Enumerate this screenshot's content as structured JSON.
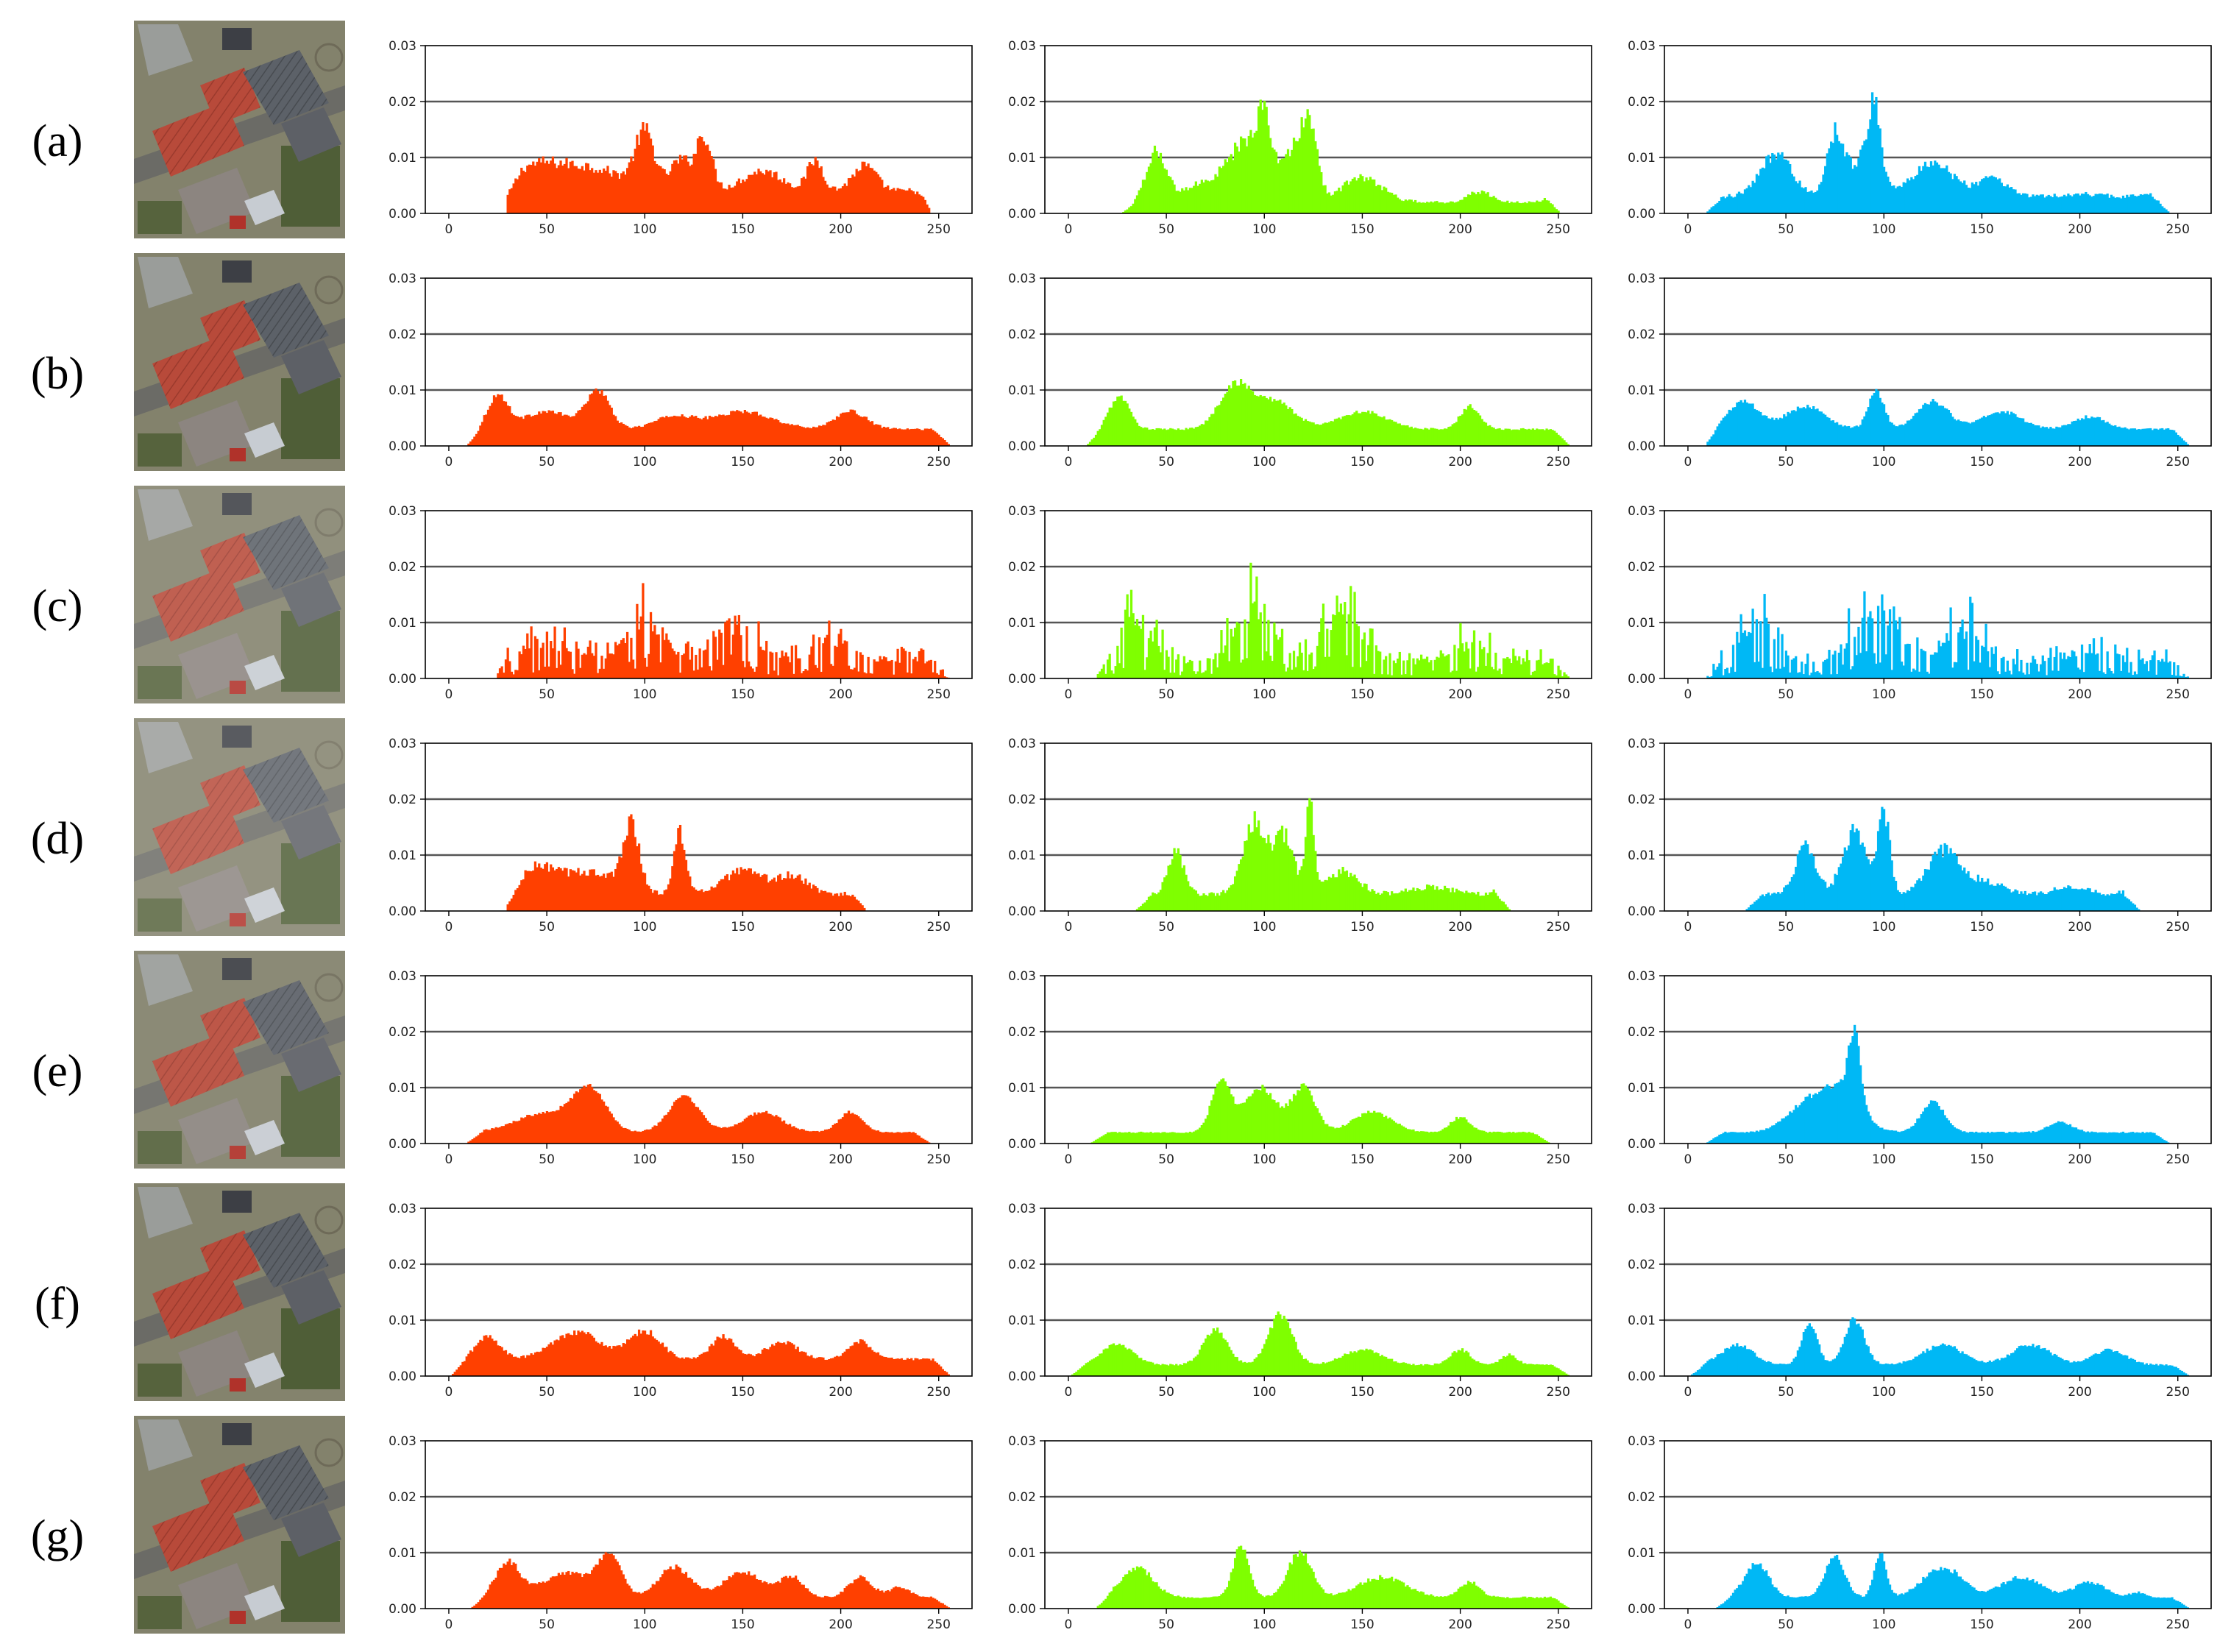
{
  "colors": {
    "red": "#ff4000",
    "green": "#7fff00",
    "blue": "#00b8f5"
  },
  "chart_data": {
    "type": "histogram-grid",
    "xlim": [
      0,
      255
    ],
    "ylim": [
      0,
      0.03
    ],
    "xticks": [
      0,
      50,
      100,
      150,
      200,
      250
    ],
    "yticks": [
      "0.00",
      "0.01",
      "0.02",
      "0.03"
    ],
    "grid": "horizontal",
    "channels": [
      "red",
      "green",
      "blue"
    ],
    "rows": [
      {
        "label": "(a)",
        "thumb": "aerial-houses",
        "red": {
          "range": [
            30,
            245
          ],
          "peaks": [
            [
              45,
              0.007,
              15
            ],
            [
              100,
              0.013,
              5
            ],
            [
              130,
              0.013,
              4
            ],
            [
              118,
              0.008,
              5
            ],
            [
              160,
              0.006,
              10
            ],
            [
              187,
              0.008,
              4
            ],
            [
              212,
              0.007,
              6
            ],
            [
              242,
              0.003,
              3
            ],
            [
              75,
              0.006,
              15
            ]
          ],
          "base": 0.004,
          "noise": 0.25
        },
        "green": {
          "range": [
            28,
            250
          ],
          "peaks": [
            [
              45,
              0.011,
              5
            ],
            [
              70,
              0.005,
              10
            ],
            [
              90,
              0.012,
              8
            ],
            [
              100,
              0.014,
              4
            ],
            [
              115,
              0.011,
              6
            ],
            [
              123,
              0.014,
              4
            ],
            [
              150,
              0.006,
              10
            ],
            [
              210,
              0.003,
              6
            ],
            [
              245,
              0.002,
              3
            ]
          ],
          "base": 0.002,
          "noise": 0.25
        },
        "blue": {
          "range": [
            10,
            245
          ],
          "peaks": [
            [
              45,
              0.01,
              8
            ],
            [
              75,
              0.013,
              4
            ],
            [
              90,
              0.009,
              8
            ],
            [
              95,
              0.014,
              3
            ],
            [
              125,
              0.008,
              10
            ],
            [
              155,
              0.005,
              8
            ],
            [
              200,
              0.002,
              10
            ],
            [
              235,
              0.002,
              3
            ]
          ],
          "base": 0.003,
          "noise": 0.25
        }
      },
      {
        "label": "(b)",
        "thumb": "aerial-houses",
        "red": {
          "range": [
            10,
            255
          ],
          "peaks": [
            [
              25,
              0.008,
              5
            ],
            [
              76,
              0.009,
              6
            ],
            [
              50,
              0.005,
              12
            ],
            [
              115,
              0.004,
              10
            ],
            [
              150,
              0.005,
              15
            ],
            [
              205,
              0.005,
              8
            ]
          ],
          "base": 0.003,
          "noise": 0.12
        },
        "green": {
          "range": [
            10,
            255
          ],
          "peaks": [
            [
              26,
              0.008,
              5
            ],
            [
              85,
              0.01,
              8
            ],
            [
              105,
              0.007,
              10
            ],
            [
              150,
              0.005,
              12
            ],
            [
              205,
              0.006,
              5
            ]
          ],
          "base": 0.003,
          "noise": 0.12
        },
        "blue": {
          "range": [
            10,
            255
          ],
          "peaks": [
            [
              28,
              0.007,
              8
            ],
            [
              60,
              0.006,
              10
            ],
            [
              96,
              0.009,
              4
            ],
            [
              125,
              0.007,
              8
            ],
            [
              160,
              0.005,
              10
            ],
            [
              205,
              0.004,
              8
            ]
          ],
          "base": 0.003,
          "noise": 0.12
        }
      },
      {
        "label": "(c)",
        "thumb": "aerial-houses",
        "red": {
          "range": [
            25,
            255
          ],
          "peaks": [
            [
              50,
              0.005,
              15
            ],
            [
              100,
              0.01,
              10
            ],
            [
              145,
              0.009,
              10
            ],
            [
              195,
              0.006,
              10
            ],
            [
              230,
              0.002,
              10
            ]
          ],
          "base": 0.003,
          "noise": 0.8,
          "spiky": true
        },
        "green": {
          "range": [
            15,
            255
          ],
          "peaks": [
            [
              35,
              0.01,
              8
            ],
            [
              95,
              0.012,
              10
            ],
            [
              140,
              0.011,
              10
            ],
            [
              205,
              0.005,
              10
            ]
          ],
          "base": 0.003,
          "noise": 0.8,
          "spiky": true
        },
        "blue": {
          "range": [
            10,
            255
          ],
          "peaks": [
            [
              35,
              0.01,
              8
            ],
            [
              95,
              0.013,
              10
            ],
            [
              140,
              0.008,
              10
            ],
            [
              205,
              0.004,
              10
            ]
          ],
          "base": 0.003,
          "noise": 0.6,
          "spiky": true
        }
      },
      {
        "label": "(d)",
        "thumb": "aerial-houses",
        "red": {
          "range": [
            30,
            212
          ],
          "peaks": [
            [
              45,
              0.006,
              8
            ],
            [
              93,
              0.015,
              4
            ],
            [
              118,
              0.014,
              3
            ],
            [
              150,
              0.006,
              10
            ],
            [
              175,
              0.005,
              8
            ],
            [
              208,
              0.002,
              3
            ],
            [
              70,
              0.006,
              15
            ]
          ],
          "base": 0.003,
          "noise": 0.25
        },
        "green": {
          "range": [
            35,
            225
          ],
          "peaks": [
            [
              55,
              0.01,
              4
            ],
            [
              95,
              0.016,
              6
            ],
            [
              123,
              0.021,
              2
            ],
            [
              110,
              0.013,
              5
            ],
            [
              140,
              0.006,
              8
            ],
            [
              185,
              0.003,
              10
            ],
            [
              218,
              0.002,
              3
            ]
          ],
          "base": 0.003,
          "noise": 0.25
        },
        "blue": {
          "range": [
            30,
            230
          ],
          "peaks": [
            [
              60,
              0.011,
              5
            ],
            [
              85,
              0.014,
              6
            ],
            [
              100,
              0.017,
              3
            ],
            [
              130,
              0.01,
              8
            ],
            [
              150,
              0.004,
              10
            ],
            [
              195,
              0.003,
              8
            ],
            [
              220,
              0.002,
              3
            ]
          ],
          "base": 0.003,
          "noise": 0.25
        }
      },
      {
        "label": "(e)",
        "thumb": "aerial-houses",
        "red": {
          "range": [
            10,
            245
          ],
          "peaks": [
            [
              72,
              0.009,
              8
            ],
            [
              120,
              0.008,
              8
            ],
            [
              50,
              0.005,
              15
            ],
            [
              160,
              0.005,
              10
            ],
            [
              205,
              0.005,
              6
            ]
          ],
          "base": 0.002,
          "noise": 0.12
        },
        "green": {
          "range": [
            12,
            245
          ],
          "peaks": [
            [
              78,
              0.011,
              5
            ],
            [
              98,
              0.01,
              8
            ],
            [
              120,
              0.01,
              6
            ],
            [
              155,
              0.005,
              10
            ],
            [
              200,
              0.004,
              5
            ]
          ],
          "base": 0.002,
          "noise": 0.12
        },
        "blue": {
          "range": [
            10,
            245
          ],
          "peaks": [
            [
              60,
              0.006,
              10
            ],
            [
              85,
              0.015,
              3
            ],
            [
              78,
              0.009,
              10
            ],
            [
              125,
              0.007,
              6
            ],
            [
              190,
              0.003,
              6
            ]
          ],
          "base": 0.002,
          "noise": 0.12
        }
      },
      {
        "label": "(f)",
        "thumb": "aerial-houses",
        "red": {
          "range": [
            2,
            255
          ],
          "peaks": [
            [
              20,
              0.006,
              6
            ],
            [
              65,
              0.007,
              12
            ],
            [
              100,
              0.007,
              8
            ],
            [
              140,
              0.006,
              6
            ],
            [
              170,
              0.005,
              8
            ],
            [
              210,
              0.005,
              6
            ]
          ],
          "base": 0.003,
          "noise": 0.15
        },
        "green": {
          "range": [
            2,
            255
          ],
          "peaks": [
            [
              25,
              0.005,
              8
            ],
            [
              75,
              0.008,
              6
            ],
            [
              108,
              0.011,
              6
            ],
            [
              150,
              0.004,
              10
            ],
            [
              200,
              0.004,
              5
            ],
            [
              225,
              0.003,
              4
            ]
          ],
          "base": 0.002,
          "noise": 0.15
        },
        "blue": {
          "range": [
            2,
            255
          ],
          "peaks": [
            [
              25,
              0.005,
              8
            ],
            [
              62,
              0.009,
              4
            ],
            [
              85,
              0.01,
              5
            ],
            [
              130,
              0.005,
              10
            ],
            [
              175,
              0.005,
              10
            ],
            [
              215,
              0.004,
              8
            ]
          ],
          "base": 0.002,
          "noise": 0.15
        }
      },
      {
        "label": "(g)",
        "thumb": "aerial-houses",
        "red": {
          "range": [
            12,
            255
          ],
          "peaks": [
            [
              30,
              0.008,
              6
            ],
            [
              82,
              0.009,
              6
            ],
            [
              60,
              0.006,
              12
            ],
            [
              115,
              0.007,
              8
            ],
            [
              150,
              0.006,
              10
            ],
            [
              175,
              0.005,
              6
            ],
            [
              210,
              0.005,
              6
            ],
            [
              230,
              0.003,
              5
            ]
          ],
          "base": 0.002,
          "noise": 0.15
        },
        "green": {
          "range": [
            15,
            255
          ],
          "peaks": [
            [
              35,
              0.007,
              8
            ],
            [
              88,
              0.011,
              4
            ],
            [
              118,
              0.01,
              6
            ],
            [
              160,
              0.005,
              12
            ],
            [
              205,
              0.004,
              5
            ]
          ],
          "base": 0.002,
          "noise": 0.15
        },
        "blue": {
          "range": [
            15,
            255
          ],
          "peaks": [
            [
              35,
              0.008,
              6
            ],
            [
              75,
              0.009,
              5
            ],
            [
              98,
              0.01,
              3
            ],
            [
              130,
              0.007,
              10
            ],
            [
              170,
              0.005,
              10
            ],
            [
              205,
              0.004,
              8
            ],
            [
              230,
              0.002,
              4
            ]
          ],
          "base": 0.002,
          "noise": 0.15
        }
      }
    ]
  }
}
